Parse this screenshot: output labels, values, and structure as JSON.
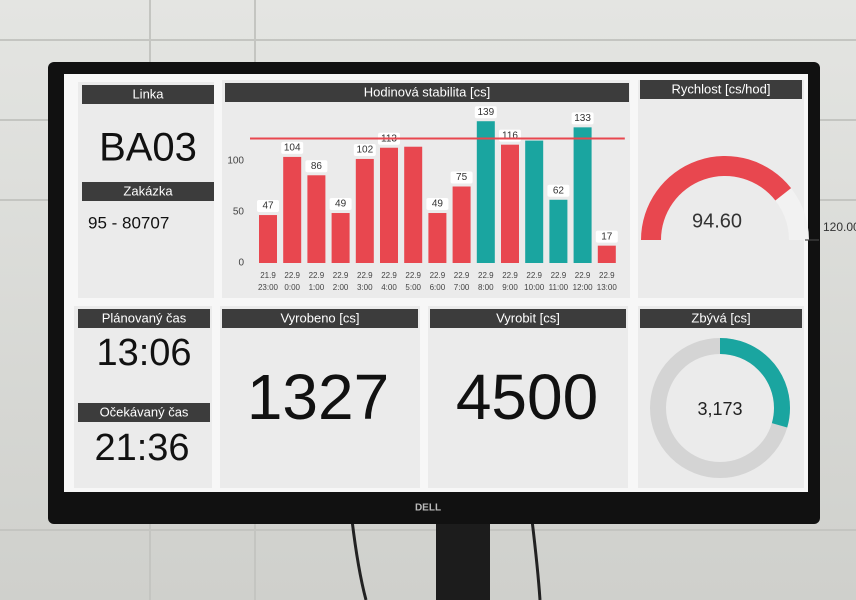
{
  "panels": {
    "linka": {
      "title": "Linka",
      "value": "BA03"
    },
    "zakazka": {
      "title": "Zakázka",
      "value": "95 - 80707"
    },
    "planovany": {
      "title": "Plánovaný čas",
      "value": "13:06"
    },
    "ocekavany": {
      "title": "Očekávaný čas",
      "value": "21:36"
    },
    "vyrobeno": {
      "title": "Vyrobeno [cs]",
      "value": 1327
    },
    "vyrobit": {
      "title": "Vyrobit [cs]",
      "value": 4500
    }
  },
  "gauge": {
    "title": "Rychlost [cs/hod]",
    "lim": [
      0,
      120
    ],
    "ticks": [
      {
        "value": 120,
        "label": "120.00"
      }
    ],
    "value": 94.6,
    "value_label": "94.60",
    "color": "#e8474f"
  },
  "donut": {
    "title": "Zbývá [cs]",
    "value": 3173,
    "value_label": "3,173",
    "color": "#1aa5a0"
  },
  "chart_data": {
    "type": "bar",
    "title": "Hodinová stabilita [cs]",
    "categories": [
      [
        "21.9",
        "23:00"
      ],
      [
        "22.9",
        "0:00"
      ],
      [
        "22.9",
        "1:00"
      ],
      [
        "22.9",
        "2:00"
      ],
      [
        "22.9",
        "3:00"
      ],
      [
        "22.9",
        "4:00"
      ],
      [
        "22.9",
        "5:00"
      ],
      [
        "22.9",
        "6:00"
      ],
      [
        "22.9",
        "7:00"
      ],
      [
        "22.9",
        "8:00"
      ],
      [
        "22.9",
        "9:00"
      ],
      [
        "22.9",
        "10:00"
      ],
      [
        "22.9",
        "11:00"
      ],
      [
        "22.9",
        "12:00"
      ],
      [
        "22.9",
        "13:00"
      ]
    ],
    "values": [
      47,
      104,
      86,
      49,
      102,
      113,
      114,
      49,
      75,
      139,
      116,
      120,
      62,
      133,
      17
    ],
    "value_labels": [
      "47",
      "104",
      "86",
      "49",
      "102",
      "113",
      null,
      "49",
      "75",
      "139",
      "116",
      null,
      "62",
      "133",
      "17"
    ],
    "colors": [
      "#e8474f",
      "#e8474f",
      "#e8474f",
      "#e8474f",
      "#e8474f",
      "#e8474f",
      "#e8474f",
      "#e8474f",
      "#e8474f",
      "#1aa5a0",
      "#e8474f",
      "#1aa5a0",
      "#1aa5a0",
      "#1aa5a0",
      "#e8474f"
    ],
    "target": 122,
    "target_color": "#e8474f",
    "ylim": [
      0,
      145
    ],
    "yticks": [
      0,
      50,
      100
    ]
  },
  "monitor": {
    "brand": "DELL"
  }
}
